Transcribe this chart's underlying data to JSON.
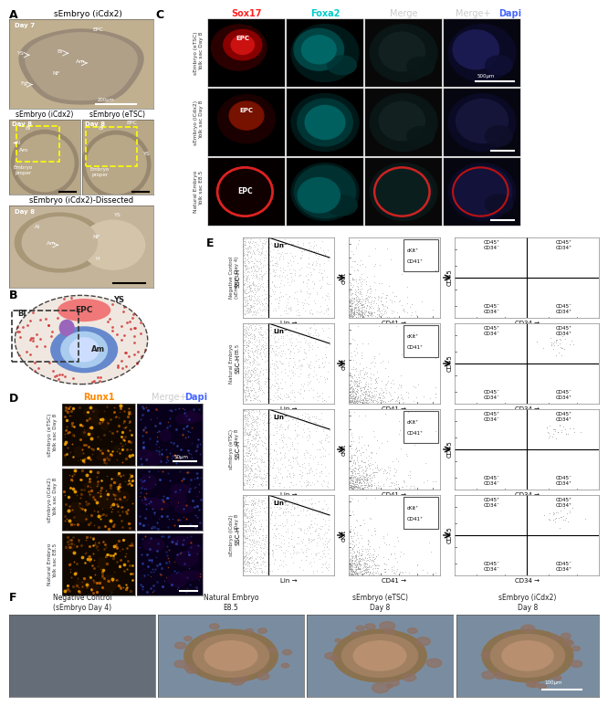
{
  "bg": "#ffffff",
  "panel_label_size": 9,
  "sox17_color": "#ff2222",
  "foxa2_color": "#00cccc",
  "dapi_color": "#4466ff",
  "runx1_color": "#ff8800",
  "panel_C_row_labels": [
    "sEmbryo (eTSC)\nYolk sac Day 8",
    "sEmbryo (iCdx2)\nYolk sac Day 8",
    "Natural Embryo\nYolk sac E8.5"
  ],
  "panel_C_col_labels": [
    "Sox17",
    "Foxa2",
    "Merge",
    "Merge+Dapi"
  ],
  "panel_D_col_labels": [
    "Runx1",
    "Merge+Dapi"
  ],
  "panel_D_row_labels": [
    "sEmbryo (eTSC)\nYolk sac Day 8",
    "sEmbryo (iCdx2)\nYolk sac Day 8",
    "Natural Embryo\nYolk sac E8.5"
  ],
  "panel_E_row_labels": [
    "Negative Control\n(sEmbryo Day 4)",
    "Natural Embryo\nE8.5",
    "sEmbryo (eTSC)\nDay 8",
    "sEmbryo (iCdx2)\nDay 8"
  ],
  "panel_F_col_labels": [
    "Negative Control\n(sEmbryo Day 4)",
    "Natural Embryo\nE8.5",
    "sEmbryo (eTSC)\nDay 8",
    "sEmbryo (iCdx2)\nDay 8"
  ],
  "A_title": "sEmbryo (iCdx2)",
  "A_sub1": "sEmbryo (iCdx2)",
  "A_sub2": "sEmbryo (eTSC)",
  "A_dissected": "sEmbryo (iCdx2)-Dissected"
}
